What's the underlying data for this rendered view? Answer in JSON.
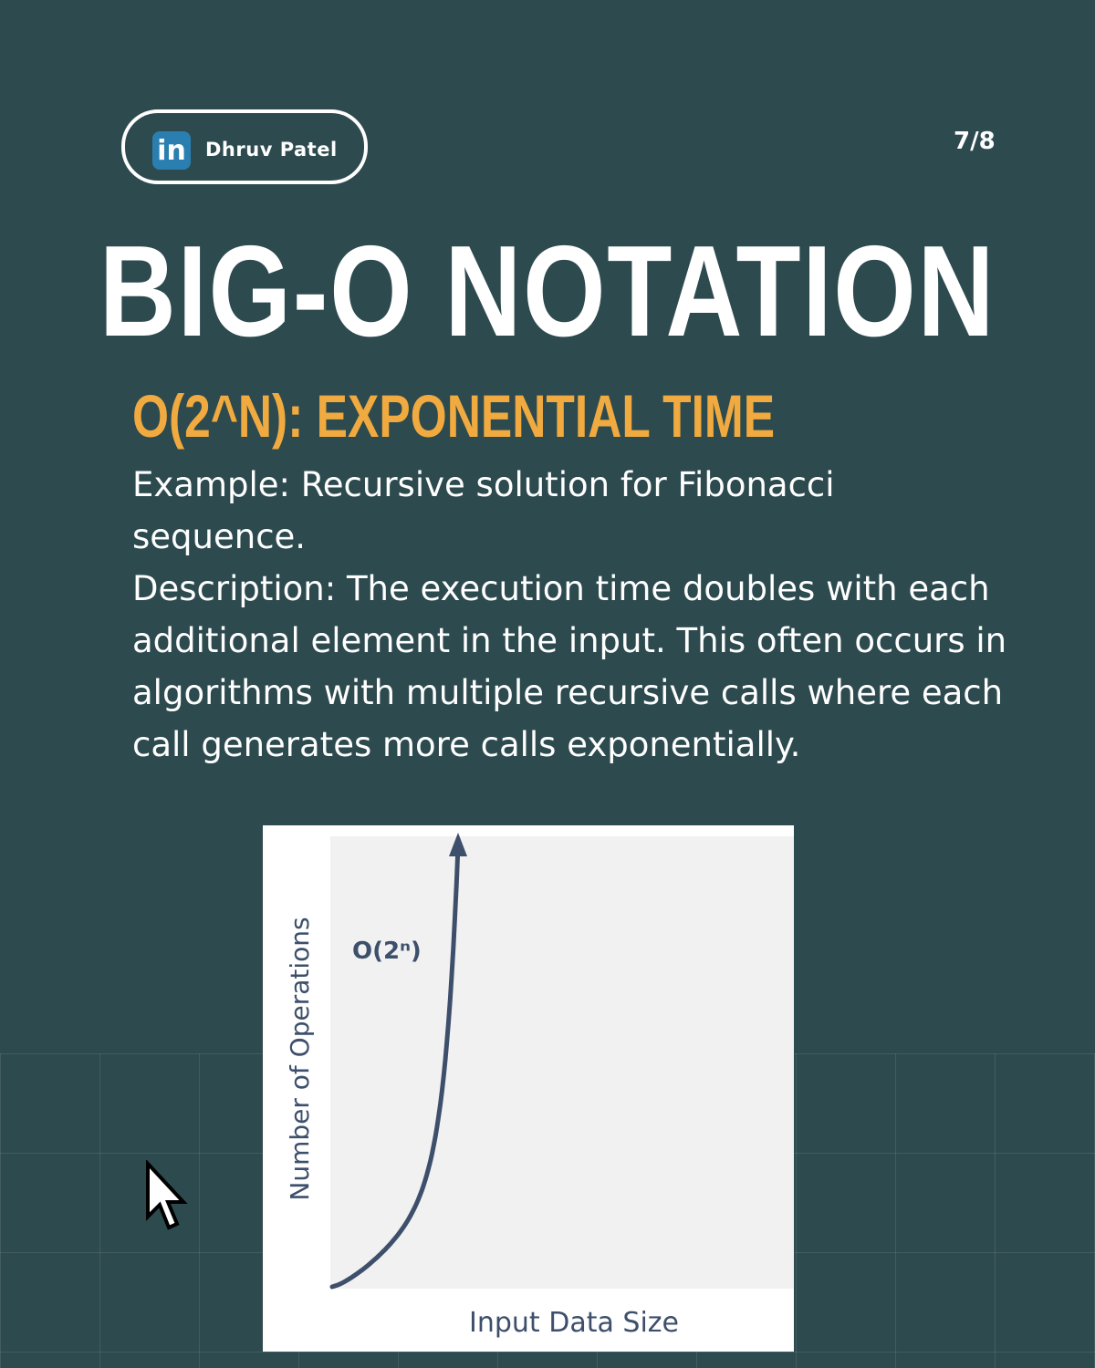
{
  "author": {
    "name": "Dhruv Patel",
    "icon": "linkedin-icon",
    "icon_text": "in"
  },
  "page_indicator": "7/8",
  "title": "BIG-O NOTATION",
  "subtitle": "O(2^N): EXPONENTIAL TIME",
  "example": "Example: Recursive solution for Fibonacci sequence.",
  "description": "Description: The execution time doubles with each additional element in the input. This often occurs in algorithms with multiple recursive calls where each call generates more calls exponentially.",
  "colors": {
    "background": "#2d4a4f",
    "accent": "#f0aa3f",
    "curve": "#3d4f6b"
  },
  "chart_data": {
    "type": "line",
    "xlabel": "Input Data Size",
    "ylabel": "Number of Operations",
    "curve_label": "O(2ⁿ)",
    "function": "2^n",
    "axis_numbers_shown": false,
    "grid": false
  },
  "cursor": "arrow-cursor-icon"
}
